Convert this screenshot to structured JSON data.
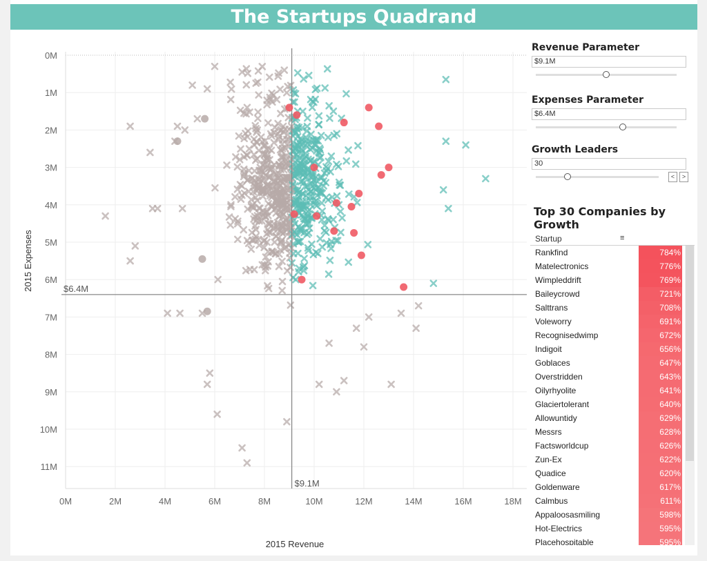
{
  "title": "The Startups Quadrand",
  "colors": {
    "left_quadrant": "#b7aaa8",
    "right_quadrant": "#5cbdb5",
    "leaders": "#ef5a64",
    "title_bar": "#6cc4b9"
  },
  "chart_data": {
    "type": "scatter",
    "xlabel": "2015 Revenue",
    "ylabel": "2015 Expenses",
    "xlim": [
      0,
      18
    ],
    "ylim": [
      0,
      11.5
    ],
    "y_inverted": true,
    "x_ticks": [
      "0M",
      "2M",
      "4M",
      "6M",
      "8M",
      "10M",
      "12M",
      "14M",
      "16M",
      "18M"
    ],
    "y_ticks": [
      "0M",
      "1M",
      "2M",
      "3M",
      "4M",
      "5M",
      "6M",
      "7M",
      "8M",
      "9M",
      "10M",
      "11M"
    ],
    "ref_x_label": "$9.1M",
    "ref_y_label": "$6.4M",
    "ref_x": 9.1,
    "ref_y": 6.4,
    "grid": true,
    "leaders": [
      [
        9.0,
        1.4
      ],
      [
        9.3,
        1.6
      ],
      [
        11.2,
        1.8
      ],
      [
        12.2,
        1.4
      ],
      [
        12.6,
        1.9
      ],
      [
        10.0,
        3.0
      ],
      [
        13.0,
        3.0
      ],
      [
        12.7,
        3.2
      ],
      [
        11.8,
        3.7
      ],
      [
        10.9,
        3.95
      ],
      [
        11.5,
        4.05
      ],
      [
        9.2,
        4.25
      ],
      [
        10.1,
        4.3
      ],
      [
        10.8,
        4.7
      ],
      [
        11.6,
        4.75
      ],
      [
        11.9,
        5.35
      ],
      [
        9.5,
        6.0
      ],
      [
        13.6,
        6.2
      ]
    ],
    "outliers": [
      [
        1.6,
        4.3
      ],
      [
        2.6,
        1.9
      ],
      [
        2.8,
        5.1
      ],
      [
        2.6,
        5.5
      ],
      [
        3.4,
        2.6
      ],
      [
        3.5,
        4.1
      ],
      [
        3.7,
        4.1
      ],
      [
        4.1,
        6.9
      ],
      [
        4.6,
        6.9
      ],
      [
        4.5,
        1.9
      ],
      [
        4.4,
        2.3
      ],
      [
        4.7,
        4.1
      ],
      [
        5.5,
        6.9
      ],
      [
        5.7,
        8.8
      ],
      [
        5.8,
        8.5
      ],
      [
        6.1,
        9.6
      ],
      [
        7.1,
        10.5
      ],
      [
        7.3,
        10.9
      ],
      [
        8.9,
        9.8
      ],
      [
        10.2,
        8.8
      ],
      [
        10.9,
        9.0
      ],
      [
        11.2,
        8.7
      ],
      [
        13.1,
        8.8
      ],
      [
        15.3,
        0.65
      ],
      [
        15.3,
        2.3
      ],
      [
        16.1,
        2.4
      ],
      [
        16.9,
        3.3
      ],
      [
        15.2,
        3.6
      ],
      [
        15.4,
        4.1
      ],
      [
        14.8,
        6.1
      ],
      [
        14.2,
        6.7
      ],
      [
        14.1,
        7.3
      ],
      [
        13.5,
        6.9
      ],
      [
        12.2,
        7.0
      ],
      [
        11.7,
        7.3
      ],
      [
        10.6,
        7.7
      ],
      [
        12.0,
        7.8
      ],
      [
        8.8,
        0.4
      ],
      [
        7.1,
        0.45
      ],
      [
        6.0,
        0.3
      ],
      [
        5.7,
        0.9
      ],
      [
        5.1,
        0.8
      ],
      [
        5.3,
        1.7
      ],
      [
        4.8,
        2.0
      ]
    ],
    "seed": 7
  },
  "controls": {
    "revenue": {
      "title": "Revenue Parameter",
      "value": "$9.1M",
      "position": 0.5
    },
    "expenses": {
      "title": "Expenses Parameter",
      "value": "$6.4M",
      "position": 0.62
    },
    "growth": {
      "title": "Growth Leaders",
      "value": "30",
      "position": 0.26,
      "prev": "<",
      "next": ">"
    }
  },
  "top_table": {
    "title": "Top 30 Companies by Growth",
    "column_header": "Startup",
    "rows": [
      {
        "name": "Rankfind",
        "value": "784%",
        "color": "#f4525c"
      },
      {
        "name": "Matelectronics",
        "value": "776%",
        "color": "#f4535d"
      },
      {
        "name": "Wimpleddrift",
        "value": "769%",
        "color": "#f4545e"
      },
      {
        "name": "Baileycrowd",
        "value": "721%",
        "color": "#f45d66"
      },
      {
        "name": "Salttrans",
        "value": "708%",
        "color": "#f46068"
      },
      {
        "name": "Voleworry",
        "value": "691%",
        "color": "#f5636b"
      },
      {
        "name": "Recognisedwimp",
        "value": "672%",
        "color": "#f5666e"
      },
      {
        "name": "Indigoit",
        "value": "656%",
        "color": "#f5696f"
      },
      {
        "name": "Goblaces",
        "value": "647%",
        "color": "#f56a71"
      },
      {
        "name": "Overstridden",
        "value": "643%",
        "color": "#f56b72"
      },
      {
        "name": "Oilyrhyolite",
        "value": "641%",
        "color": "#f56b72"
      },
      {
        "name": "Glaciertolerant",
        "value": "640%",
        "color": "#f56c72"
      },
      {
        "name": "Allowuntidy",
        "value": "629%",
        "color": "#f56e74"
      },
      {
        "name": "Messrs",
        "value": "628%",
        "color": "#f56e74"
      },
      {
        "name": "Factsworldcup",
        "value": "626%",
        "color": "#f56e75"
      },
      {
        "name": "Zun-Ex",
        "value": "622%",
        "color": "#f56f75"
      },
      {
        "name": "Quadice",
        "value": "620%",
        "color": "#f56f76"
      },
      {
        "name": "Goldenware",
        "value": "617%",
        "color": "#f57076"
      },
      {
        "name": "Calmbus",
        "value": "611%",
        "color": "#f57177"
      },
      {
        "name": "Appaloosasmiling",
        "value": "598%",
        "color": "#f57479"
      },
      {
        "name": "Hot-Electrics",
        "value": "595%",
        "color": "#f5747a"
      },
      {
        "name": "Placehospitable",
        "value": "595%",
        "color": "#f5747a"
      }
    ]
  }
}
